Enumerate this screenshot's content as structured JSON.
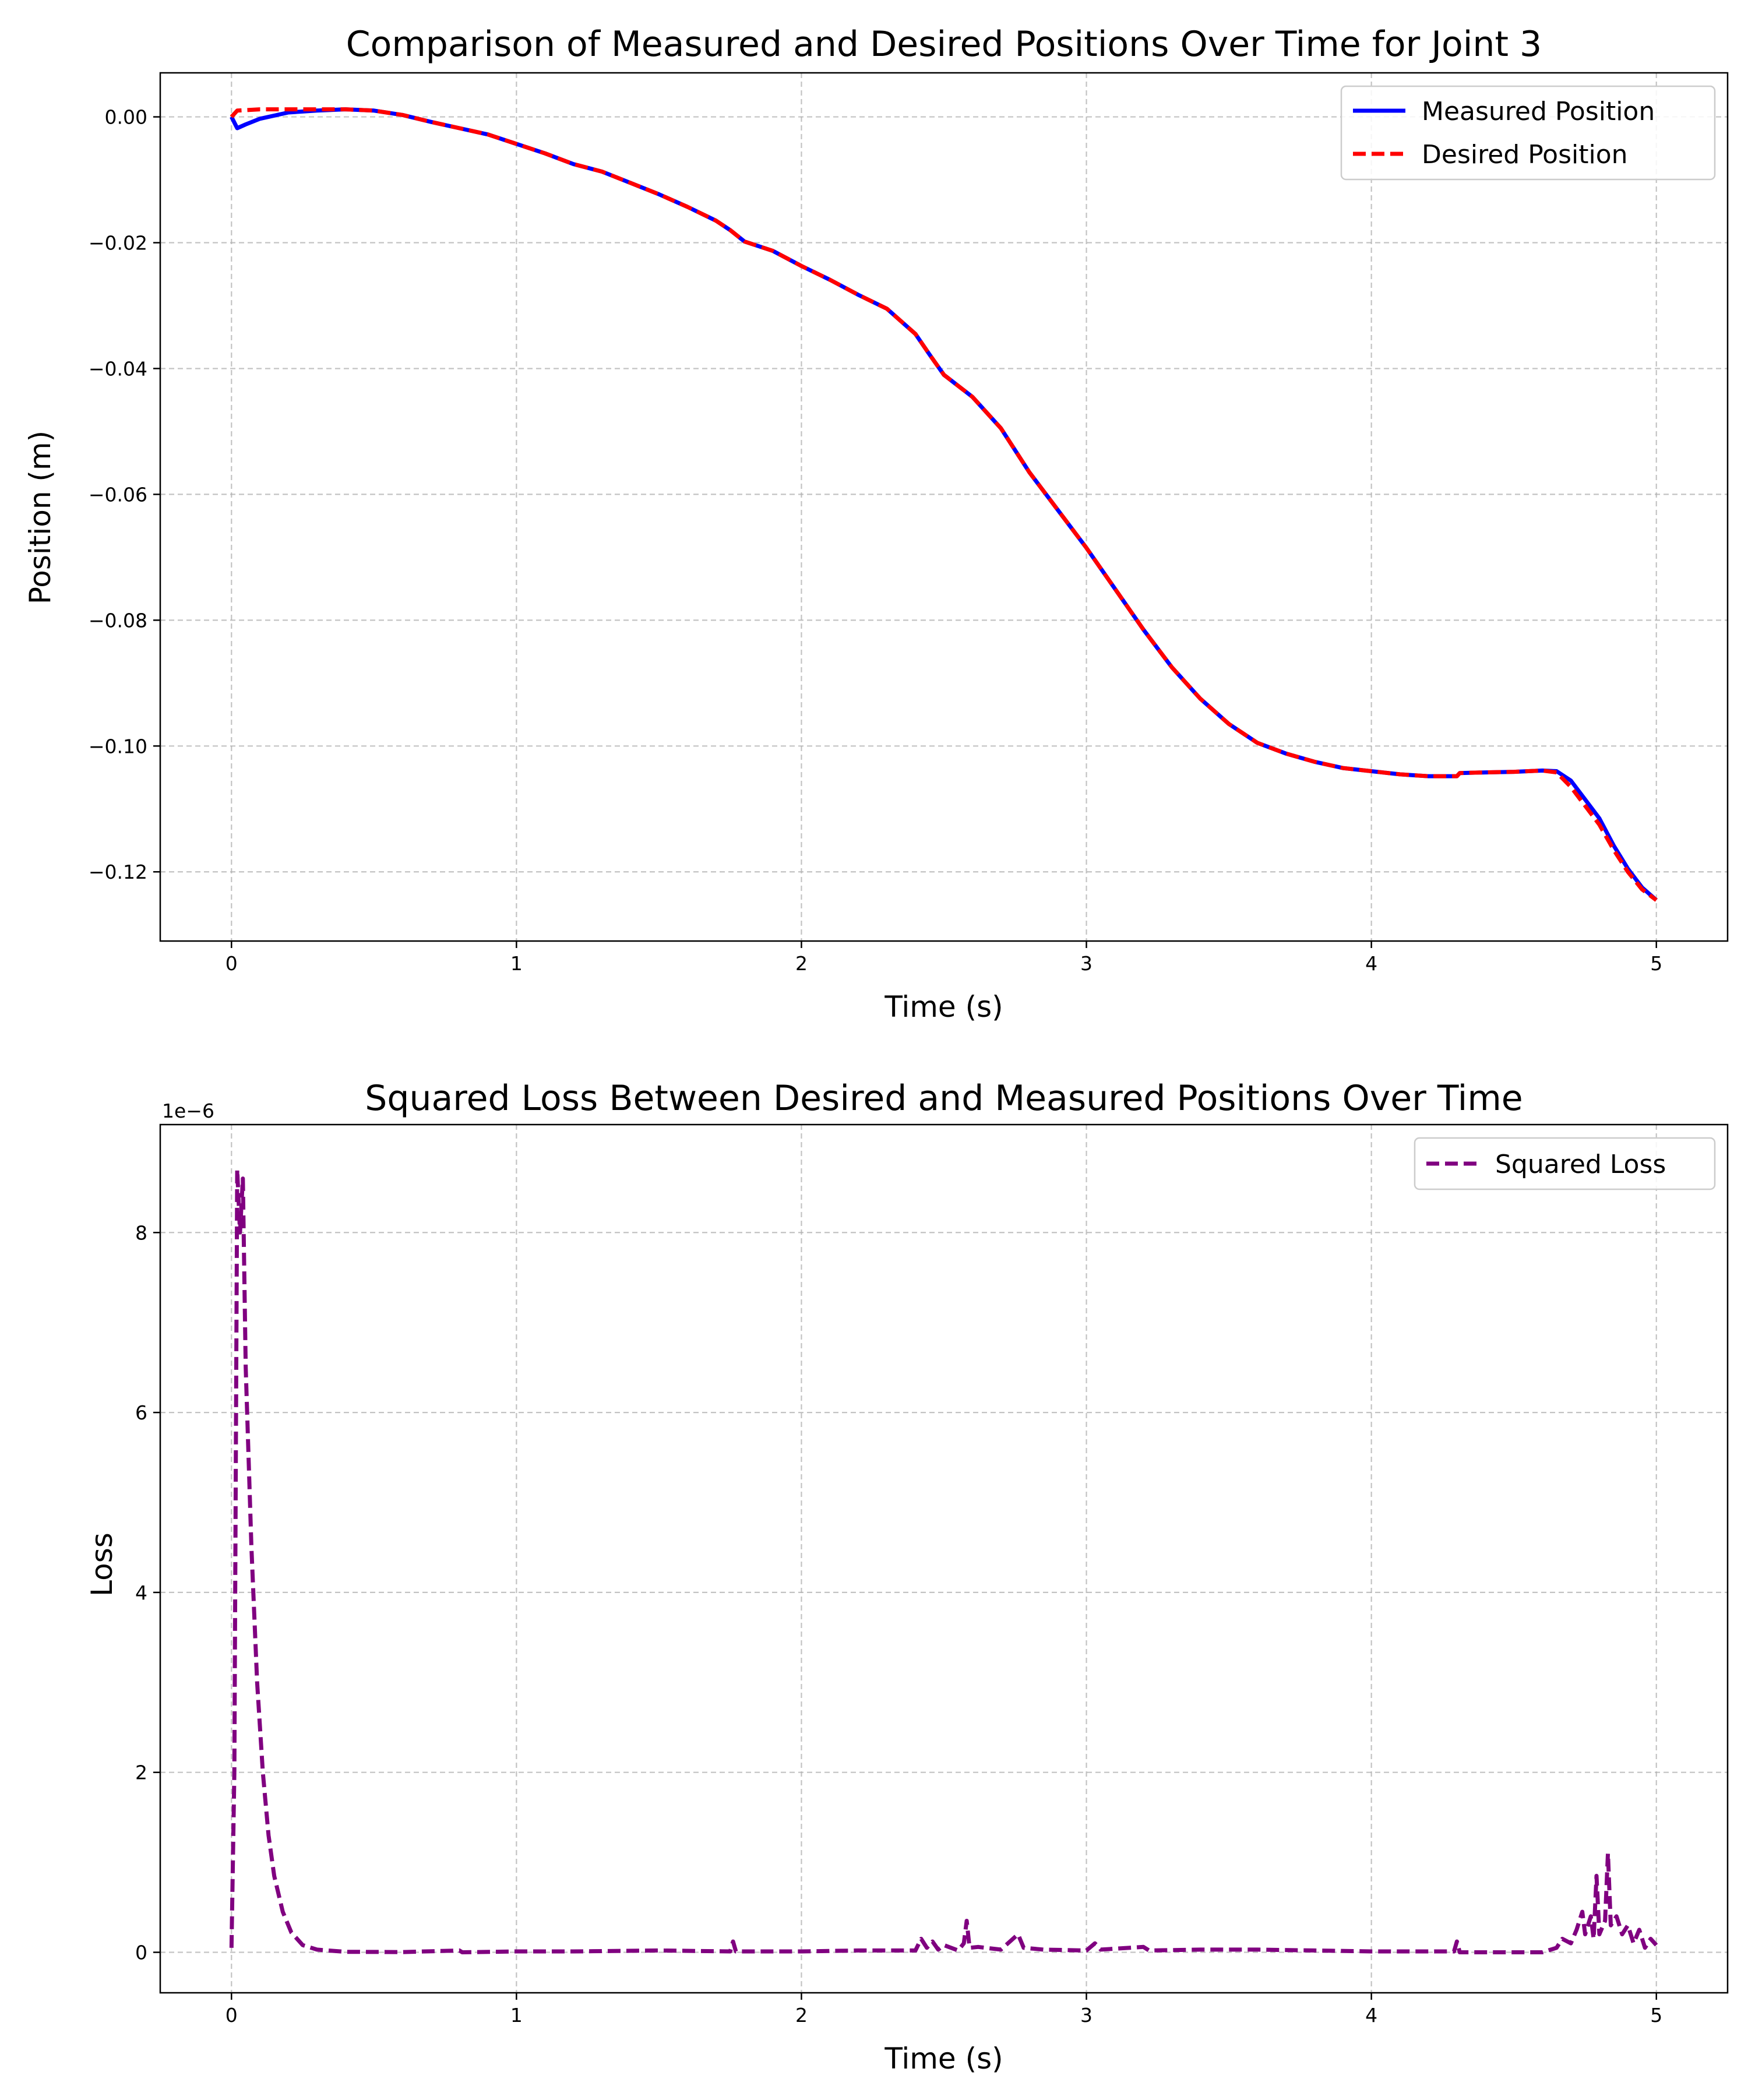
{
  "chart_data": [
    {
      "type": "line",
      "title": "Comparison of Measured and Desired Positions Over Time for Joint 3",
      "xlabel": "Time (s)",
      "ylabel": "Position (m)",
      "xlim": [
        -0.25,
        5.25
      ],
      "ylim": [
        -0.131,
        0.007
      ],
      "xticks": [
        0,
        1,
        2,
        3,
        4,
        5
      ],
      "xtick_labels": [
        "0",
        "1",
        "2",
        "3",
        "4",
        "5"
      ],
      "yticks": [
        0.0,
        -0.02,
        -0.04,
        -0.06,
        -0.08,
        -0.1,
        -0.12
      ],
      "ytick_labels": [
        "0.00",
        "−0.02",
        "−0.04",
        "−0.06",
        "−0.08",
        "−0.10",
        "−0.12"
      ],
      "grid": true,
      "legend": "top-right",
      "series": [
        {
          "name": "Measured Position",
          "color": "#0000ff",
          "style": "solid",
          "points": [
            [
              0,
              0
            ],
            [
              0.02,
              -0.0018
            ],
            [
              0.05,
              -0.0012
            ],
            [
              0.1,
              -0.0003
            ],
            [
              0.2,
              0.0007
            ],
            [
              0.3,
              0.001
            ],
            [
              0.4,
              0.0012
            ],
            [
              0.5,
              0.001
            ],
            [
              0.6,
              0.0003
            ],
            [
              0.7,
              -0.0008
            ],
            [
              0.8,
              -0.0018
            ],
            [
              0.9,
              -0.0028
            ],
            [
              1.0,
              -0.0043
            ],
            [
              1.1,
              -0.0058
            ],
            [
              1.2,
              -0.0075
            ],
            [
              1.3,
              -0.0087
            ],
            [
              1.4,
              -0.0105
            ],
            [
              1.5,
              -0.0123
            ],
            [
              1.6,
              -0.0143
            ],
            [
              1.7,
              -0.0165
            ],
            [
              1.75,
              -0.018
            ],
            [
              1.8,
              -0.0198
            ],
            [
              1.9,
              -0.0213
            ],
            [
              2.0,
              -0.0237
            ],
            [
              2.1,
              -0.0259
            ],
            [
              2.2,
              -0.0283
            ],
            [
              2.3,
              -0.0305
            ],
            [
              2.4,
              -0.0345
            ],
            [
              2.45,
              -0.0378
            ],
            [
              2.5,
              -0.041
            ],
            [
              2.6,
              -0.0445
            ],
            [
              2.7,
              -0.0495
            ],
            [
              2.8,
              -0.0565
            ],
            [
              2.9,
              -0.0625
            ],
            [
              3.0,
              -0.0685
            ],
            [
              3.1,
              -0.075
            ],
            [
              3.2,
              -0.0815
            ],
            [
              3.3,
              -0.0875
            ],
            [
              3.4,
              -0.0925
            ],
            [
              3.5,
              -0.0965
            ],
            [
              3.6,
              -0.0995
            ],
            [
              3.7,
              -0.1012
            ],
            [
              3.8,
              -0.1025
            ],
            [
              3.9,
              -0.1035
            ],
            [
              4.0,
              -0.104
            ],
            [
              4.1,
              -0.1045
            ],
            [
              4.2,
              -0.1048
            ],
            [
              4.3,
              -0.1048
            ],
            [
              4.31,
              -0.1043
            ],
            [
              4.4,
              -0.1042
            ],
            [
              4.5,
              -0.1041
            ],
            [
              4.6,
              -0.1039
            ],
            [
              4.65,
              -0.104
            ],
            [
              4.7,
              -0.1055
            ],
            [
              4.75,
              -0.1085
            ],
            [
              4.8,
              -0.1115
            ],
            [
              4.85,
              -0.1158
            ],
            [
              4.9,
              -0.1195
            ],
            [
              4.95,
              -0.1225
            ],
            [
              5.0,
              -0.1245
            ]
          ]
        },
        {
          "name": "Desired Position",
          "color": "#ff0000",
          "style": "dashed",
          "points": [
            [
              0,
              0
            ],
            [
              0.02,
              0.001
            ],
            [
              0.1,
              0.0012
            ],
            [
              0.2,
              0.0012
            ],
            [
              0.3,
              0.0012
            ],
            [
              0.4,
              0.0012
            ],
            [
              0.5,
              0.001
            ],
            [
              0.6,
              0.0003
            ],
            [
              0.7,
              -0.0008
            ],
            [
              0.8,
              -0.0018
            ],
            [
              0.9,
              -0.0028
            ],
            [
              1.0,
              -0.0043
            ],
            [
              1.1,
              -0.0058
            ],
            [
              1.2,
              -0.0075
            ],
            [
              1.3,
              -0.0087
            ],
            [
              1.4,
              -0.0105
            ],
            [
              1.5,
              -0.0123
            ],
            [
              1.6,
              -0.0143
            ],
            [
              1.7,
              -0.0165
            ],
            [
              1.75,
              -0.018
            ],
            [
              1.8,
              -0.0198
            ],
            [
              1.9,
              -0.0213
            ],
            [
              2.0,
              -0.0237
            ],
            [
              2.1,
              -0.0259
            ],
            [
              2.2,
              -0.0283
            ],
            [
              2.3,
              -0.0305
            ],
            [
              2.4,
              -0.0345
            ],
            [
              2.45,
              -0.0378
            ],
            [
              2.5,
              -0.041
            ],
            [
              2.6,
              -0.0445
            ],
            [
              2.7,
              -0.0495
            ],
            [
              2.8,
              -0.0565
            ],
            [
              2.9,
              -0.0625
            ],
            [
              3.0,
              -0.0685
            ],
            [
              3.1,
              -0.075
            ],
            [
              3.2,
              -0.0815
            ],
            [
              3.3,
              -0.0875
            ],
            [
              3.4,
              -0.0925
            ],
            [
              3.5,
              -0.0965
            ],
            [
              3.6,
              -0.0995
            ],
            [
              3.7,
              -0.1012
            ],
            [
              3.8,
              -0.1025
            ],
            [
              3.9,
              -0.1035
            ],
            [
              4.0,
              -0.104
            ],
            [
              4.1,
              -0.1045
            ],
            [
              4.2,
              -0.1048
            ],
            [
              4.3,
              -0.1048
            ],
            [
              4.31,
              -0.1043
            ],
            [
              4.4,
              -0.1042
            ],
            [
              4.5,
              -0.1041
            ],
            [
              4.6,
              -0.1039
            ],
            [
              4.65,
              -0.1042
            ],
            [
              4.7,
              -0.1065
            ],
            [
              4.75,
              -0.1095
            ],
            [
              4.8,
              -0.1125
            ],
            [
              4.85,
              -0.1165
            ],
            [
              4.9,
              -0.12
            ],
            [
              4.95,
              -0.1228
            ],
            [
              5.0,
              -0.1245
            ]
          ]
        }
      ]
    },
    {
      "type": "line",
      "title": "Squared Loss Between Desired and Measured Positions Over Time",
      "xlabel": "Time (s)",
      "ylabel": "Loss",
      "offset_text": "1e−6",
      "xlim": [
        -0.25,
        5.25
      ],
      "ylim": [
        -0.45,
        9.2
      ],
      "xticks": [
        0,
        1,
        2,
        3,
        4,
        5
      ],
      "xtick_labels": [
        "0",
        "1",
        "2",
        "3",
        "4",
        "5"
      ],
      "yticks": [
        0,
        2,
        4,
        6,
        8
      ],
      "ytick_labels": [
        "0",
        "2",
        "4",
        "6",
        "8"
      ],
      "grid": true,
      "legend": "top-right",
      "series": [
        {
          "name": "Squared Loss",
          "color": "#800080",
          "style": "dashed",
          "points": [
            [
              0,
              0.05
            ],
            [
              0.01,
              2.0
            ],
            [
              0.02,
              8.7
            ],
            [
              0.03,
              8.0
            ],
            [
              0.04,
              8.6
            ],
            [
              0.05,
              6.5
            ],
            [
              0.07,
              4.5
            ],
            [
              0.09,
              3.0
            ],
            [
              0.11,
              2.0
            ],
            [
              0.13,
              1.3
            ],
            [
              0.15,
              0.85
            ],
            [
              0.18,
              0.45
            ],
            [
              0.21,
              0.22
            ],
            [
              0.25,
              0.08
            ],
            [
              0.3,
              0.03
            ],
            [
              0.4,
              0.005
            ],
            [
              0.6,
              0.003
            ],
            [
              0.8,
              0.02
            ],
            [
              0.81,
              0.0
            ],
            [
              1.0,
              0.01
            ],
            [
              1.2,
              0.01
            ],
            [
              1.5,
              0.02
            ],
            [
              1.75,
              0.01
            ],
            [
              1.76,
              0.12
            ],
            [
              1.77,
              0.01
            ],
            [
              2.0,
              0.01
            ],
            [
              2.2,
              0.02
            ],
            [
              2.4,
              0.02
            ],
            [
              2.42,
              0.15
            ],
            [
              2.44,
              0.05
            ],
            [
              2.46,
              0.12
            ],
            [
              2.48,
              0.03
            ],
            [
              2.5,
              0.08
            ],
            [
              2.55,
              0.02
            ],
            [
              2.57,
              0.1
            ],
            [
              2.58,
              0.35
            ],
            [
              2.59,
              0.05
            ],
            [
              2.62,
              0.06
            ],
            [
              2.7,
              0.03
            ],
            [
              2.76,
              0.2
            ],
            [
              2.78,
              0.05
            ],
            [
              2.85,
              0.03
            ],
            [
              3.0,
              0.02
            ],
            [
              3.03,
              0.1
            ],
            [
              3.05,
              0.03
            ],
            [
              3.2,
              0.06
            ],
            [
              3.22,
              0.02
            ],
            [
              3.4,
              0.03
            ],
            [
              3.6,
              0.03
            ],
            [
              3.8,
              0.02
            ],
            [
              4.0,
              0.01
            ],
            [
              4.29,
              0.01
            ],
            [
              4.3,
              0.12
            ],
            [
              4.31,
              0.0
            ],
            [
              4.5,
              0.0
            ],
            [
              4.6,
              0.0
            ],
            [
              4.65,
              0.05
            ],
            [
              4.67,
              0.15
            ],
            [
              4.7,
              0.1
            ],
            [
              4.72,
              0.25
            ],
            [
              4.74,
              0.45
            ],
            [
              4.75,
              0.2
            ],
            [
              4.77,
              0.4
            ],
            [
              4.78,
              0.15
            ],
            [
              4.79,
              0.85
            ],
            [
              4.8,
              0.2
            ],
            [
              4.82,
              0.35
            ],
            [
              4.83,
              1.1
            ],
            [
              4.84,
              0.3
            ],
            [
              4.86,
              0.4
            ],
            [
              4.88,
              0.2
            ],
            [
              4.9,
              0.3
            ],
            [
              4.92,
              0.1
            ],
            [
              4.94,
              0.25
            ],
            [
              4.96,
              0.05
            ],
            [
              4.98,
              0.15
            ],
            [
              5.0,
              0.08
            ]
          ]
        }
      ]
    }
  ]
}
